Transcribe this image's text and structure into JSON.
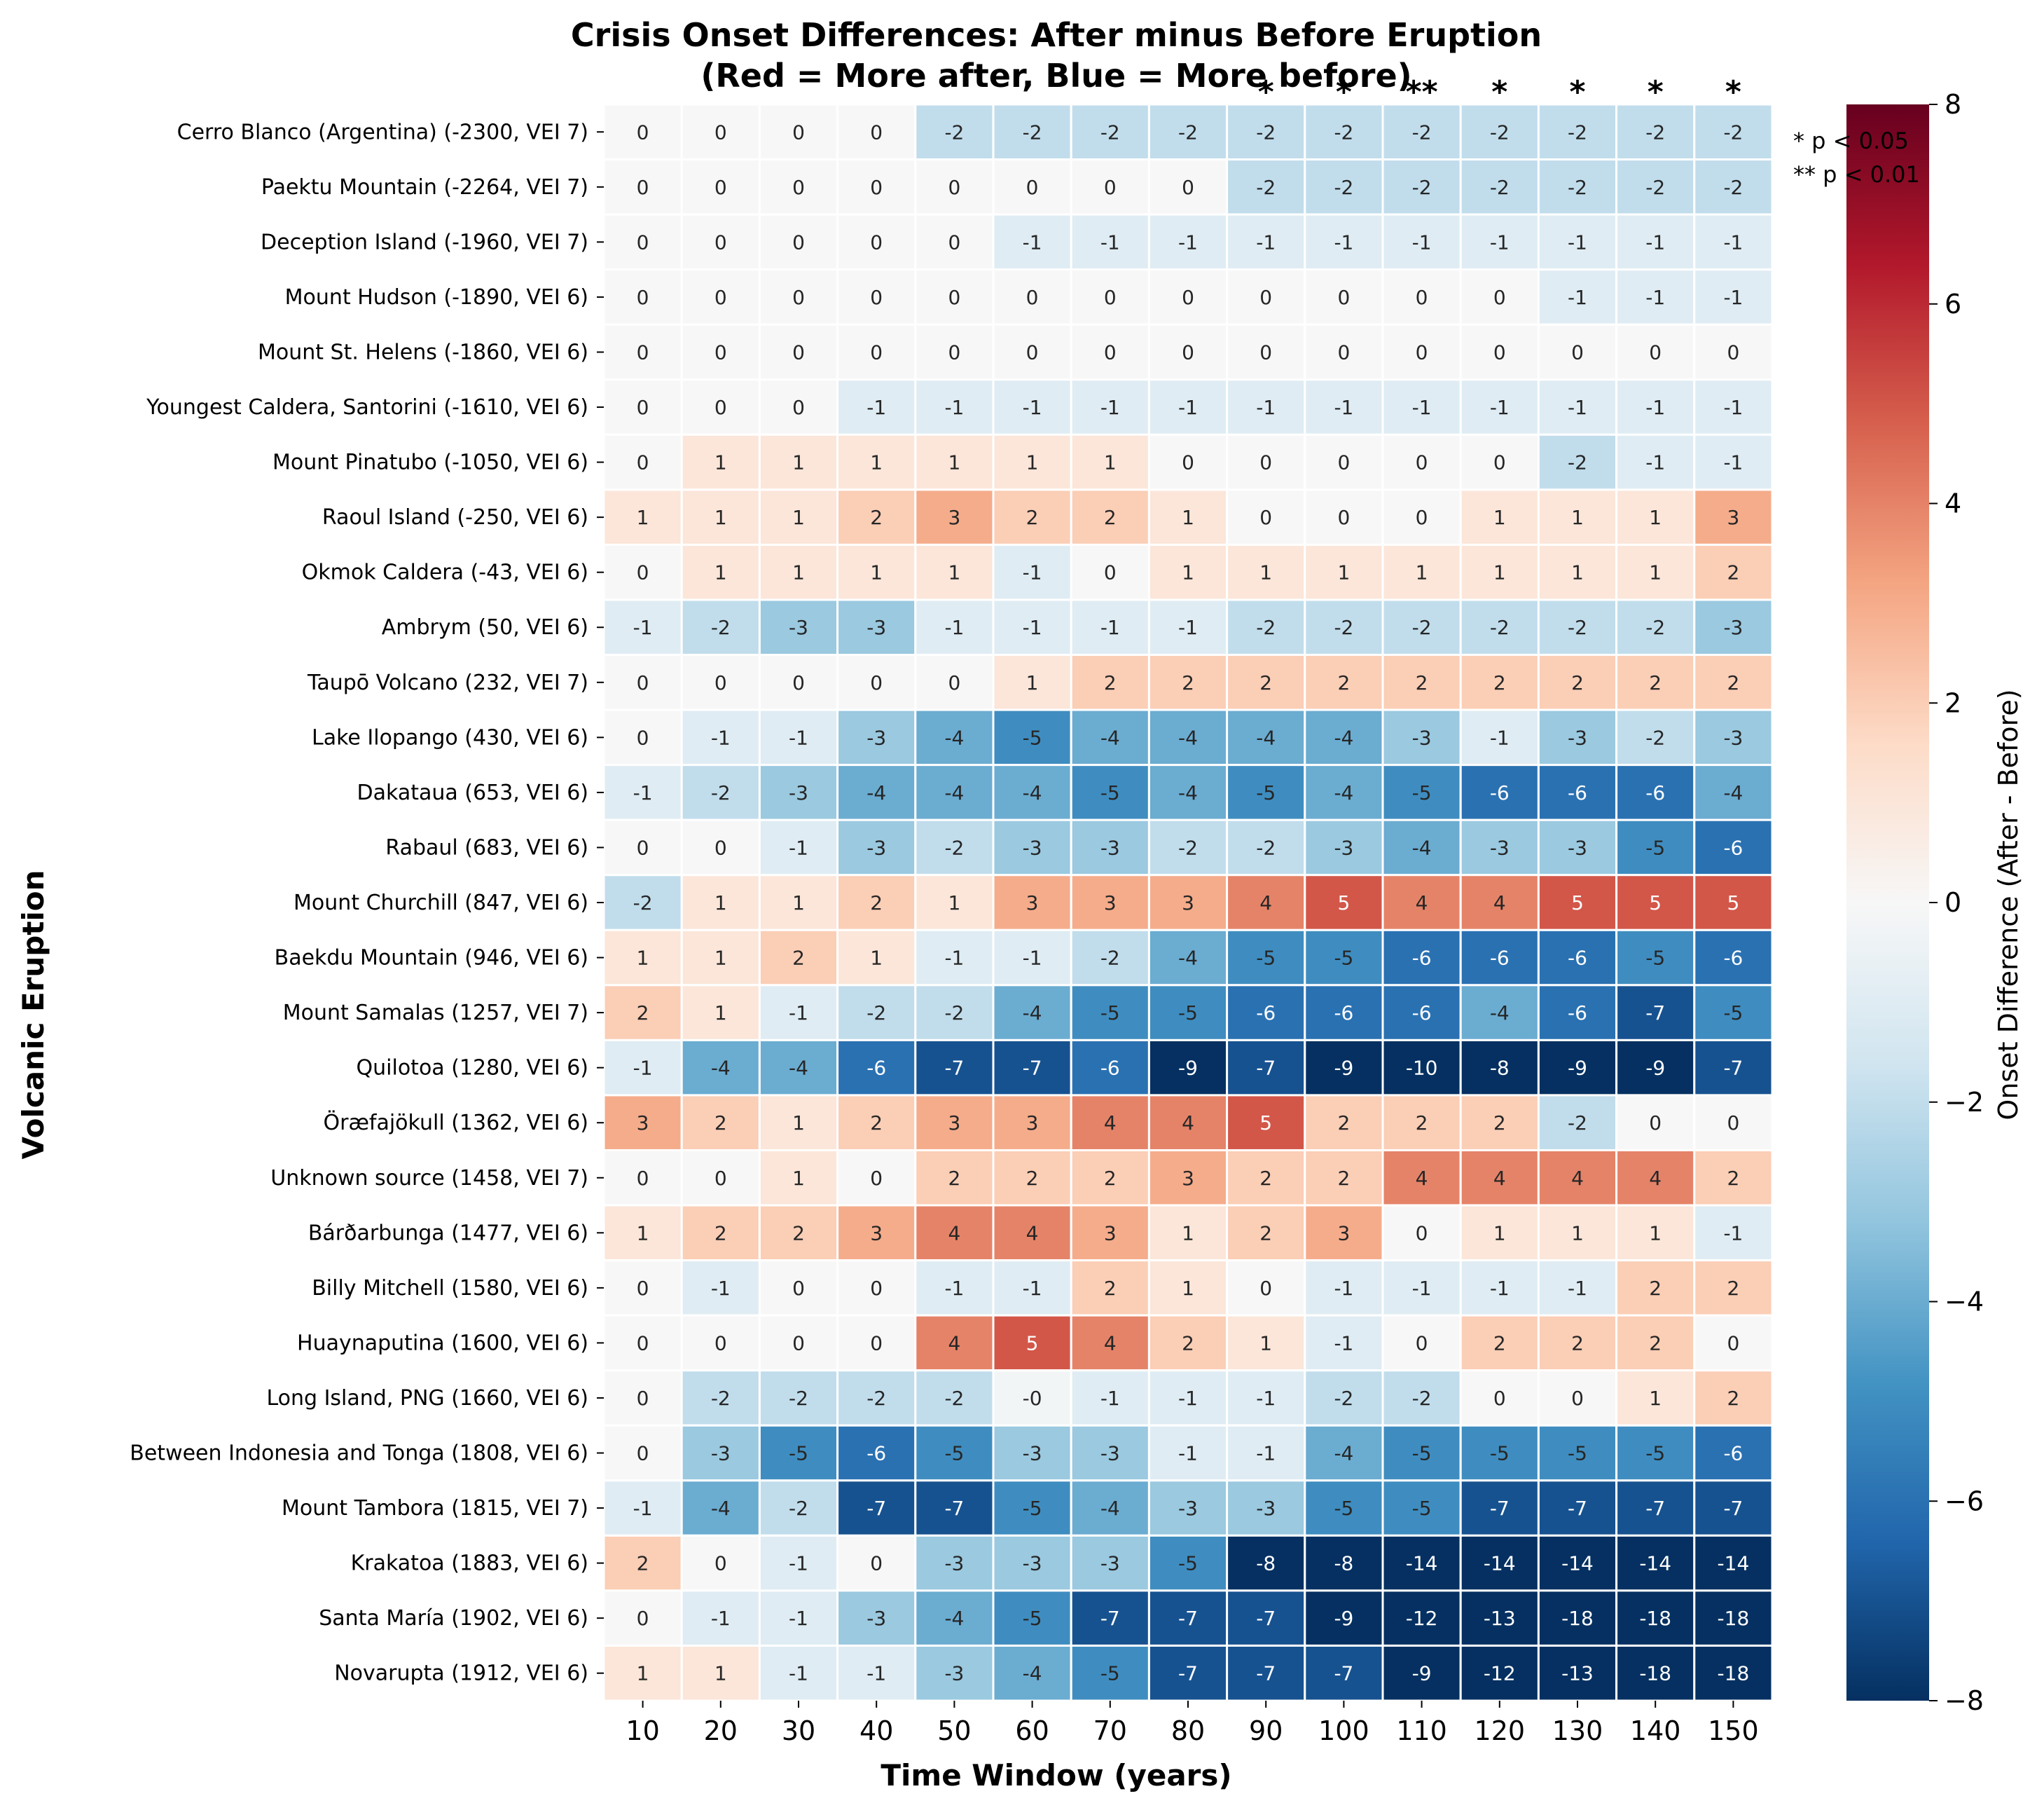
{
  "chart_data": {
    "type": "heatmap",
    "title_lines": [
      "Crisis Onset Differences: After minus Before Eruption",
      "(Red = More after, Blue = More before)"
    ],
    "xlabel": "Time Window (years)",
    "ylabel": "Volcanic Eruption",
    "x": [
      10,
      20,
      30,
      40,
      50,
      60,
      70,
      80,
      90,
      100,
      110,
      120,
      130,
      140,
      150
    ],
    "y": [
      "Cerro Blanco (Argentina)  (-2300, VEI 7)",
      "Paektu Mountain  (-2264, VEI 7)",
      "Deception Island  (-1960, VEI 7)",
      "Mount Hudson  (-1890, VEI 6)",
      "Mount St. Helens  (-1860, VEI 6)",
      "Youngest Caldera, Santorini  (-1610, VEI 6)",
      "Mount Pinatubo  (-1050, VEI 6)",
      "Raoul Island  (-250, VEI 6)",
      "Okmok Caldera  (-43, VEI 6)",
      "Ambrym  (50, VEI 6)",
      "Taupō Volcano  (232, VEI 7)",
      "Lake Ilopango  (430, VEI 6)",
      "Dakataua  (653, VEI 6)",
      "Rabaul  (683, VEI 6)",
      "Mount Churchill  (847, VEI 6)",
      "Baekdu Mountain  (946, VEI 6)",
      "Mount Samalas  (1257, VEI 7)",
      "Quilotoa  (1280, VEI 6)",
      "Öræfajökull  (1362, VEI 6)",
      "Unknown source  (1458, VEI 7)",
      "Bárðarbunga  (1477, VEI 6)",
      "Billy Mitchell  (1580, VEI 6)",
      "Huaynaputina  (1600, VEI 6)",
      "Long Island, PNG  (1660, VEI 6)",
      "Between Indonesia and Tonga  (1808, VEI 6)",
      "Mount Tambora (1815, VEI 7)",
      "Krakatoa  (1883, VEI 6)",
      "Santa María  (1902, VEI 6)",
      "Novarupta  (1912, VEI 6)"
    ],
    "values": [
      [
        0,
        0,
        0,
        0,
        -2,
        -2,
        -2,
        -2,
        -2,
        -2,
        -2,
        -2,
        -2,
        -2,
        -2
      ],
      [
        0,
        0,
        0,
        0,
        0,
        0,
        0,
        0,
        -2,
        -2,
        -2,
        -2,
        -2,
        -2,
        -2
      ],
      [
        0,
        0,
        0,
        0,
        0,
        -1,
        -1,
        -1,
        -1,
        -1,
        -1,
        -1,
        -1,
        -1,
        -1
      ],
      [
        0,
        0,
        0,
        0,
        0,
        0,
        0,
        0,
        0,
        0,
        0,
        0,
        -1,
        -1,
        -1
      ],
      [
        0,
        0,
        0,
        0,
        0,
        0,
        0,
        0,
        0,
        0,
        0,
        0,
        0,
        0,
        0
      ],
      [
        0,
        0,
        0,
        -1,
        -1,
        -1,
        -1,
        -1,
        -1,
        -1,
        -1,
        -1,
        -1,
        -1,
        -1
      ],
      [
        0,
        1,
        1,
        1,
        1,
        1,
        1,
        0,
        0,
        0,
        0,
        0,
        -2,
        -1,
        -1
      ],
      [
        1,
        1,
        1,
        2,
        3,
        2,
        2,
        1,
        0,
        0,
        0,
        1,
        1,
        1,
        3
      ],
      [
        0,
        1,
        1,
        1,
        1,
        -1,
        0,
        1,
        1,
        1,
        1,
        1,
        1,
        1,
        2
      ],
      [
        -1,
        -2,
        -3,
        -3,
        -1,
        -1,
        -1,
        -1,
        -2,
        -2,
        -2,
        -2,
        -2,
        -2,
        -3
      ],
      [
        0,
        0,
        0,
        0,
        0,
        1,
        2,
        2,
        2,
        2,
        2,
        2,
        2,
        2,
        2
      ],
      [
        0,
        -1,
        -1,
        -3,
        -4,
        -5,
        -4,
        -4,
        -4,
        -4,
        -3,
        -1,
        -3,
        -2,
        -3
      ],
      [
        -1,
        -2,
        -3,
        -4,
        -4,
        -4,
        -5,
        -4,
        -5,
        -4,
        -5,
        -6,
        -6,
        -6,
        -4
      ],
      [
        0,
        0,
        -1,
        -3,
        -2,
        -3,
        -3,
        -2,
        -2,
        -3,
        -4,
        -3,
        -3,
        -5,
        -6
      ],
      [
        -2,
        1,
        1,
        2,
        1,
        3,
        3,
        3,
        4,
        5,
        4,
        4,
        5,
        5,
        5
      ],
      [
        1,
        1,
        2,
        1,
        -1,
        -1,
        -2,
        -4,
        -5,
        -5,
        -6,
        -6,
        -6,
        -5,
        -6
      ],
      [
        2,
        1,
        -1,
        -2,
        -2,
        -4,
        -5,
        -5,
        -6,
        -6,
        -6,
        -4,
        -6,
        -7,
        -5
      ],
      [
        -1,
        -4,
        -4,
        -6,
        -7,
        -7,
        -6,
        -9,
        -7,
        -9,
        -10,
        -8,
        -9,
        -9,
        -7
      ],
      [
        3,
        2,
        1,
        2,
        3,
        3,
        4,
        4,
        5,
        2,
        2,
        2,
        -2,
        0,
        0
      ],
      [
        0,
        0,
        1,
        0,
        2,
        2,
        2,
        3,
        2,
        2,
        4,
        4,
        4,
        4,
        2
      ],
      [
        1,
        2,
        2,
        3,
        4,
        4,
        3,
        1,
        2,
        3,
        0,
        1,
        1,
        1,
        -1
      ],
      [
        0,
        -1,
        0,
        0,
        -1,
        -1,
        2,
        1,
        0,
        -1,
        -1,
        -1,
        -1,
        2,
        2
      ],
      [
        0,
        0,
        0,
        0,
        4,
        5,
        4,
        2,
        1,
        -1,
        0,
        2,
        2,
        2,
        0
      ],
      [
        0,
        -2,
        -2,
        -2,
        -2,
        -0.2,
        -1,
        -1,
        -1,
        -2,
        -2,
        0,
        0,
        1,
        2
      ],
      [
        0,
        -3,
        -5,
        -6,
        -5,
        -3,
        -3,
        -1,
        -1,
        -4,
        -5,
        -5,
        -5,
        -5,
        -6
      ],
      [
        -1,
        -4,
        -2,
        -7,
        -7,
        -5,
        -4,
        -3,
        -3,
        -5,
        -5,
        -7,
        -7,
        -7,
        -7
      ],
      [
        2,
        0,
        -1,
        0,
        -3,
        -3,
        -3,
        -5,
        -8,
        -8,
        -14,
        -14,
        -14,
        -14,
        -14
      ],
      [
        0,
        -1,
        -1,
        -3,
        -4,
        -5,
        -7,
        -7,
        -7,
        -9,
        -12,
        -13,
        -18,
        -18,
        -18
      ],
      [
        1,
        1,
        -1,
        -1,
        -3,
        -4,
        -5,
        -7,
        -7,
        -7,
        -9,
        -12,
        -13,
        -18,
        -18
      ]
    ],
    "cell_labels": [
      [
        "0",
        "0",
        "0",
        "0",
        "-2",
        "-2",
        "-2",
        "-2",
        "-2",
        "-2",
        "-2",
        "-2",
        "-2",
        "-2",
        "-2"
      ],
      [
        "0",
        "0",
        "0",
        "0",
        "0",
        "0",
        "0",
        "0",
        "-2",
        "-2",
        "-2",
        "-2",
        "-2",
        "-2",
        "-2"
      ],
      [
        "0",
        "0",
        "0",
        "0",
        "0",
        "-1",
        "-1",
        "-1",
        "-1",
        "-1",
        "-1",
        "-1",
        "-1",
        "-1",
        "-1"
      ],
      [
        "0",
        "0",
        "0",
        "0",
        "0",
        "0",
        "0",
        "0",
        "0",
        "0",
        "0",
        "0",
        "-1",
        "-1",
        "-1"
      ],
      [
        "0",
        "0",
        "0",
        "0",
        "0",
        "0",
        "0",
        "0",
        "0",
        "0",
        "0",
        "0",
        "0",
        "0",
        "0"
      ],
      [
        "0",
        "0",
        "0",
        "-1",
        "-1",
        "-1",
        "-1",
        "-1",
        "-1",
        "-1",
        "-1",
        "-1",
        "-1",
        "-1",
        "-1"
      ],
      [
        "0",
        "1",
        "1",
        "1",
        "1",
        "1",
        "1",
        "0",
        "0",
        "0",
        "0",
        "0",
        "-2",
        "-1",
        "-1"
      ],
      [
        "1",
        "1",
        "1",
        "2",
        "3",
        "2",
        "2",
        "1",
        "0",
        "0",
        "0",
        "1",
        "1",
        "1",
        "3"
      ],
      [
        "0",
        "1",
        "1",
        "1",
        "1",
        "-1",
        "0",
        "1",
        "1",
        "1",
        "1",
        "1",
        "1",
        "1",
        "2"
      ],
      [
        "-1",
        "-2",
        "-3",
        "-3",
        "-1",
        "-1",
        "-1",
        "-1",
        "-2",
        "-2",
        "-2",
        "-2",
        "-2",
        "-2",
        "-3"
      ],
      [
        "0",
        "0",
        "0",
        "0",
        "0",
        "1",
        "2",
        "2",
        "2",
        "2",
        "2",
        "2",
        "2",
        "2",
        "2"
      ],
      [
        "0",
        "-1",
        "-1",
        "-3",
        "-4",
        "-5",
        "-4",
        "-4",
        "-4",
        "-4",
        "-3",
        "-1",
        "-3",
        "-2",
        "-3"
      ],
      [
        "-1",
        "-2",
        "-3",
        "-4",
        "-4",
        "-4",
        "-5",
        "-4",
        "-5",
        "-4",
        "-5",
        "-6",
        "-6",
        "-6",
        "-4"
      ],
      [
        "0",
        "0",
        "-1",
        "-3",
        "-2",
        "-3",
        "-3",
        "-2",
        "-2",
        "-3",
        "-4",
        "-3",
        "-3",
        "-5",
        "-6"
      ],
      [
        "-2",
        "1",
        "1",
        "2",
        "1",
        "3",
        "3",
        "3",
        "4",
        "5",
        "4",
        "4",
        "5",
        "5",
        "5"
      ],
      [
        "1",
        "1",
        "2",
        "1",
        "-1",
        "-1",
        "-2",
        "-4",
        "-5",
        "-5",
        "-6",
        "-6",
        "-6",
        "-5",
        "-6"
      ],
      [
        "2",
        "1",
        "-1",
        "-2",
        "-2",
        "-4",
        "-5",
        "-5",
        "-6",
        "-6",
        "-6",
        "-4",
        "-6",
        "-7",
        "-5"
      ],
      [
        "-1",
        "-4",
        "-4",
        "-6",
        "-7",
        "-7",
        "-6",
        "-9",
        "-7",
        "-9",
        "-10",
        "-8",
        "-9",
        "-9",
        "-7"
      ],
      [
        "3",
        "2",
        "1",
        "2",
        "3",
        "3",
        "4",
        "4",
        "5",
        "2",
        "2",
        "2",
        "-2",
        "0",
        "0"
      ],
      [
        "0",
        "0",
        "1",
        "0",
        "2",
        "2",
        "2",
        "3",
        "2",
        "2",
        "4",
        "4",
        "4",
        "4",
        "2"
      ],
      [
        "1",
        "2",
        "2",
        "3",
        "4",
        "4",
        "3",
        "1",
        "2",
        "3",
        "0",
        "1",
        "1",
        "1",
        "-1"
      ],
      [
        "0",
        "-1",
        "0",
        "0",
        "-1",
        "-1",
        "2",
        "1",
        "0",
        "-1",
        "-1",
        "-1",
        "-1",
        "2",
        "2"
      ],
      [
        "0",
        "0",
        "0",
        "0",
        "4",
        "5",
        "4",
        "2",
        "1",
        "-1",
        "0",
        "2",
        "2",
        "2",
        "0"
      ],
      [
        "0",
        "-2",
        "-2",
        "-2",
        "-2",
        "-0",
        "-1",
        "-1",
        "-1",
        "-2",
        "-2",
        "0",
        "0",
        "1",
        "2"
      ],
      [
        "0",
        "-3",
        "-5",
        "-6",
        "-5",
        "-3",
        "-3",
        "-1",
        "-1",
        "-4",
        "-5",
        "-5",
        "-5",
        "-5",
        "-6"
      ],
      [
        "-1",
        "-4",
        "-2",
        "-7",
        "-7",
        "-5",
        "-4",
        "-3",
        "-3",
        "-5",
        "-5",
        "-7",
        "-7",
        "-7",
        "-7"
      ],
      [
        "2",
        "0",
        "-1",
        "0",
        "-3",
        "-3",
        "-3",
        "-5",
        "-8",
        "-8",
        "-14",
        "-14",
        "-14",
        "-14",
        "-14"
      ],
      [
        "0",
        "-1",
        "-1",
        "-3",
        "-4",
        "-5",
        "-7",
        "-7",
        "-7",
        "-9",
        "-12",
        "-13",
        "-18",
        "-18",
        "-18"
      ],
      [
        "1",
        "1",
        "-1",
        "-1",
        "-3",
        "-4",
        "-5",
        "-7",
        "-7",
        "-7",
        "-9",
        "-12",
        "-13",
        "-18",
        "-18"
      ]
    ],
    "significance": [
      "",
      "",
      "",
      "",
      "",
      "",
      "",
      "",
      "*",
      "*",
      "**",
      "*",
      "*",
      "*",
      "*"
    ],
    "significance_legend": [
      "* p < 0.05",
      "** p < 0.01"
    ],
    "colorbar": {
      "label": "Onset Difference (After - Before)",
      "range": [
        -8,
        8
      ],
      "ticks": [
        -8,
        -6,
        -4,
        -2,
        0,
        2,
        4,
        6,
        8
      ],
      "tick_labels": [
        "−8",
        "−6",
        "−4",
        "−2",
        "0",
        "2",
        "4",
        "6",
        "8"
      ],
      "colormap": "RdBu_r"
    },
    "grid": false
  }
}
